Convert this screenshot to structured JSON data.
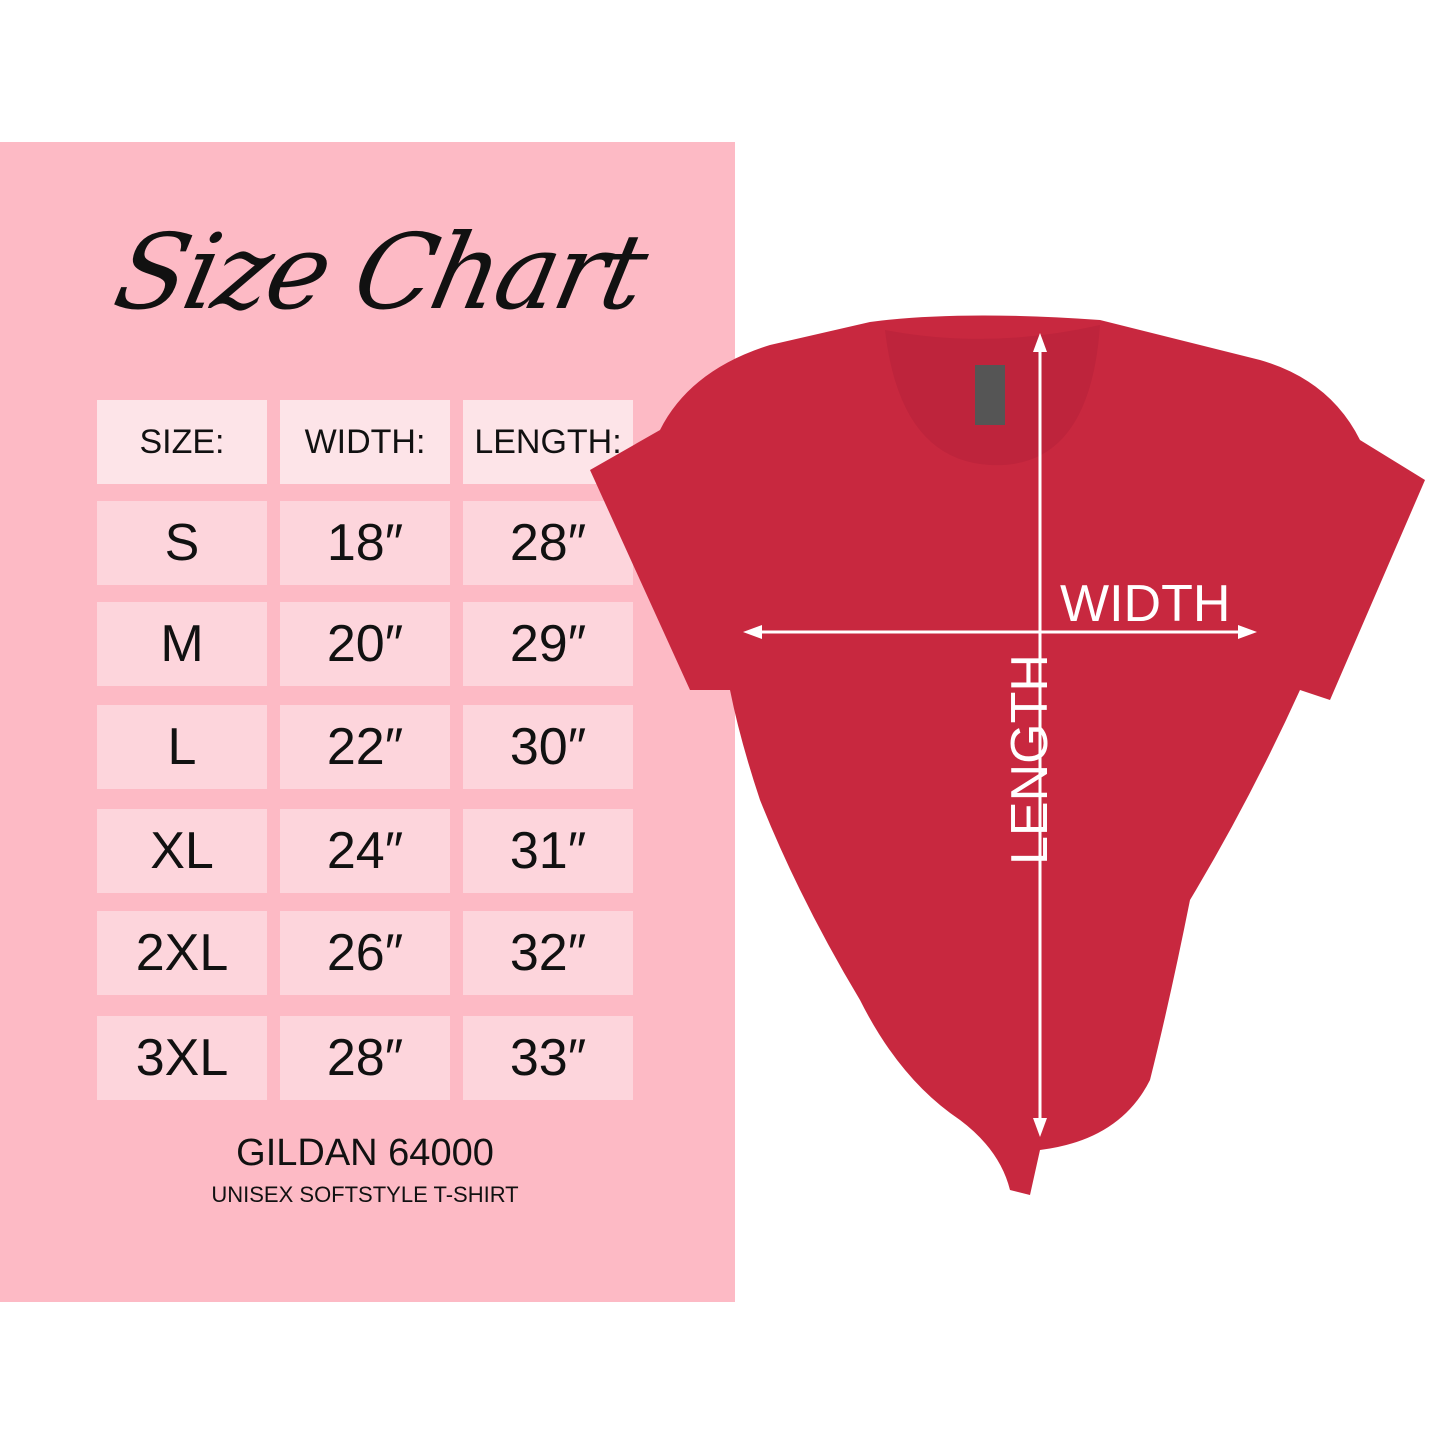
{
  "title": "Size Chart",
  "table": {
    "headers": [
      "SIZE:",
      "WIDTH:",
      "LENGTH:"
    ],
    "rows": [
      [
        "S",
        "18″",
        "28″"
      ],
      [
        "M",
        "20″",
        "29″"
      ],
      [
        "L",
        "22″",
        "30″"
      ],
      [
        "XL",
        "24″",
        "31″"
      ],
      [
        "2XL",
        "26″",
        "32″"
      ],
      [
        "3XL",
        "28″",
        "33″"
      ]
    ]
  },
  "brand": {
    "model": "GILDAN 64000",
    "description": "UNISEX SOFTSTYLE T-SHIRT",
    "tag": "GILDAN"
  },
  "diagram": {
    "width_label": "WIDTH",
    "length_label": "LENGTH"
  },
  "colors": {
    "panel": "#fdbac5",
    "header_cell": "#fde4e8",
    "body_cell": "#fdd5dc",
    "shirt": "#c8283f"
  }
}
